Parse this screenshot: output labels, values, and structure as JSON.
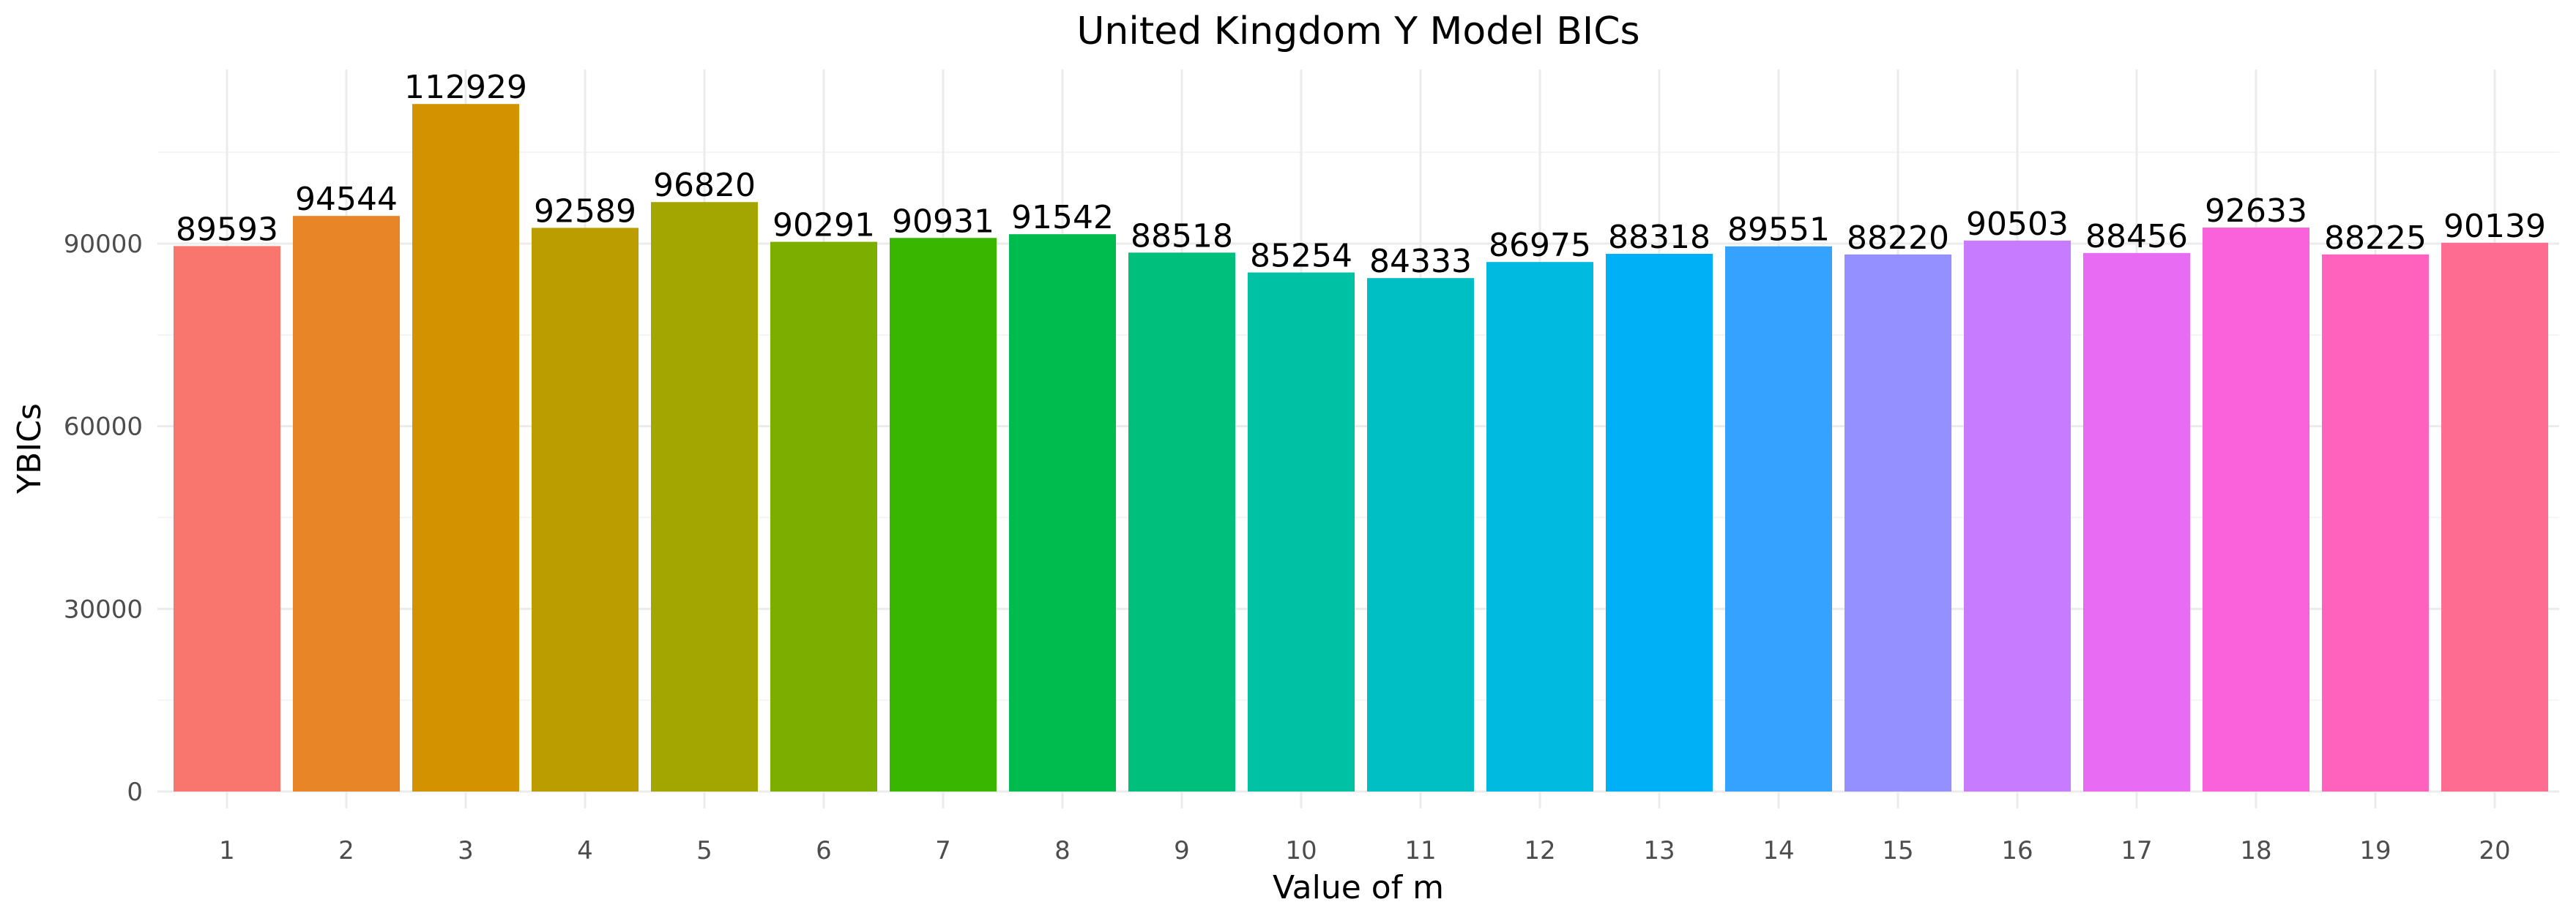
{
  "chart_data": {
    "type": "bar",
    "title": "United Kingdom Y Model BICs",
    "xlabel": "Value of m",
    "ylabel": "YBICs",
    "categories": [
      "1",
      "2",
      "3",
      "4",
      "5",
      "6",
      "7",
      "8",
      "9",
      "10",
      "11",
      "12",
      "13",
      "14",
      "15",
      "16",
      "17",
      "18",
      "19",
      "20"
    ],
    "values": [
      89593,
      94544,
      112929,
      92589,
      96820,
      90291,
      90931,
      91542,
      88518,
      85254,
      84333,
      86975,
      88318,
      89551,
      88220,
      90503,
      88456,
      92633,
      88225,
      90139
    ],
    "colors": [
      "#F8766D",
      "#E88526",
      "#D39200",
      "#BB9D00",
      "#A3A500",
      "#7CAE00",
      "#39B600",
      "#00BB4E",
      "#00BF7D",
      "#00C1A3",
      "#00BFC4",
      "#00BAE0",
      "#00B0F6",
      "#35A2FF",
      "#9590FF",
      "#C77CFF",
      "#E76BF3",
      "#FA62DB",
      "#FF62BC",
      "#FF6C91"
    ],
    "ylim": [
      0,
      120000
    ],
    "yticks": [
      0,
      30000,
      60000,
      90000
    ],
    "yticklabels": [
      "0",
      "30000",
      "60000",
      "90000"
    ],
    "grid": true,
    "legend": "none"
  }
}
